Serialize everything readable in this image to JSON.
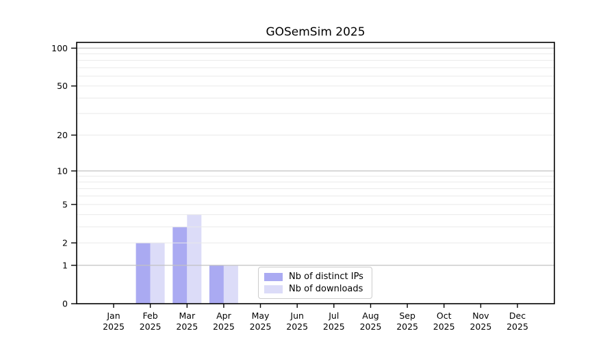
{
  "chart_data": {
    "type": "bar",
    "title": "GOSemSim 2025",
    "categories": [
      "Jan",
      "Feb",
      "Mar",
      "Apr",
      "May",
      "Jun",
      "Jul",
      "Aug",
      "Sep",
      "Oct",
      "Nov",
      "Dec"
    ],
    "category_year": "2025",
    "series": [
      {
        "name": "Nb of distinct IPs",
        "color": "#aaaaf2",
        "values": [
          0,
          2,
          3,
          1,
          0,
          0,
          0,
          0,
          0,
          0,
          0,
          0
        ]
      },
      {
        "name": "Nb of downloads",
        "color": "#dcdcf8",
        "values": [
          0,
          2,
          4,
          1,
          0,
          0,
          0,
          0,
          0,
          0,
          0,
          0
        ]
      }
    ],
    "yscale": "log1p",
    "yticks": [
      0,
      1,
      2,
      5,
      10,
      20,
      50,
      100
    ],
    "ylim": [
      0,
      111
    ],
    "xlabel": "",
    "ylabel": "",
    "grid": {
      "orientation": "horizontal",
      "minor_values": [
        2,
        3,
        4,
        5,
        6,
        7,
        8,
        9,
        20,
        30,
        40,
        50,
        60,
        70,
        80,
        90
      ],
      "major_values": [
        1,
        10,
        100
      ],
      "minor_color": "#e9e9e9",
      "major_color": "#c2c2c2",
      "grid_above_bars": true
    },
    "legend": {
      "position": "inside-bottom-center"
    },
    "axis_color": "#000000",
    "background_color": "#ffffff"
  }
}
